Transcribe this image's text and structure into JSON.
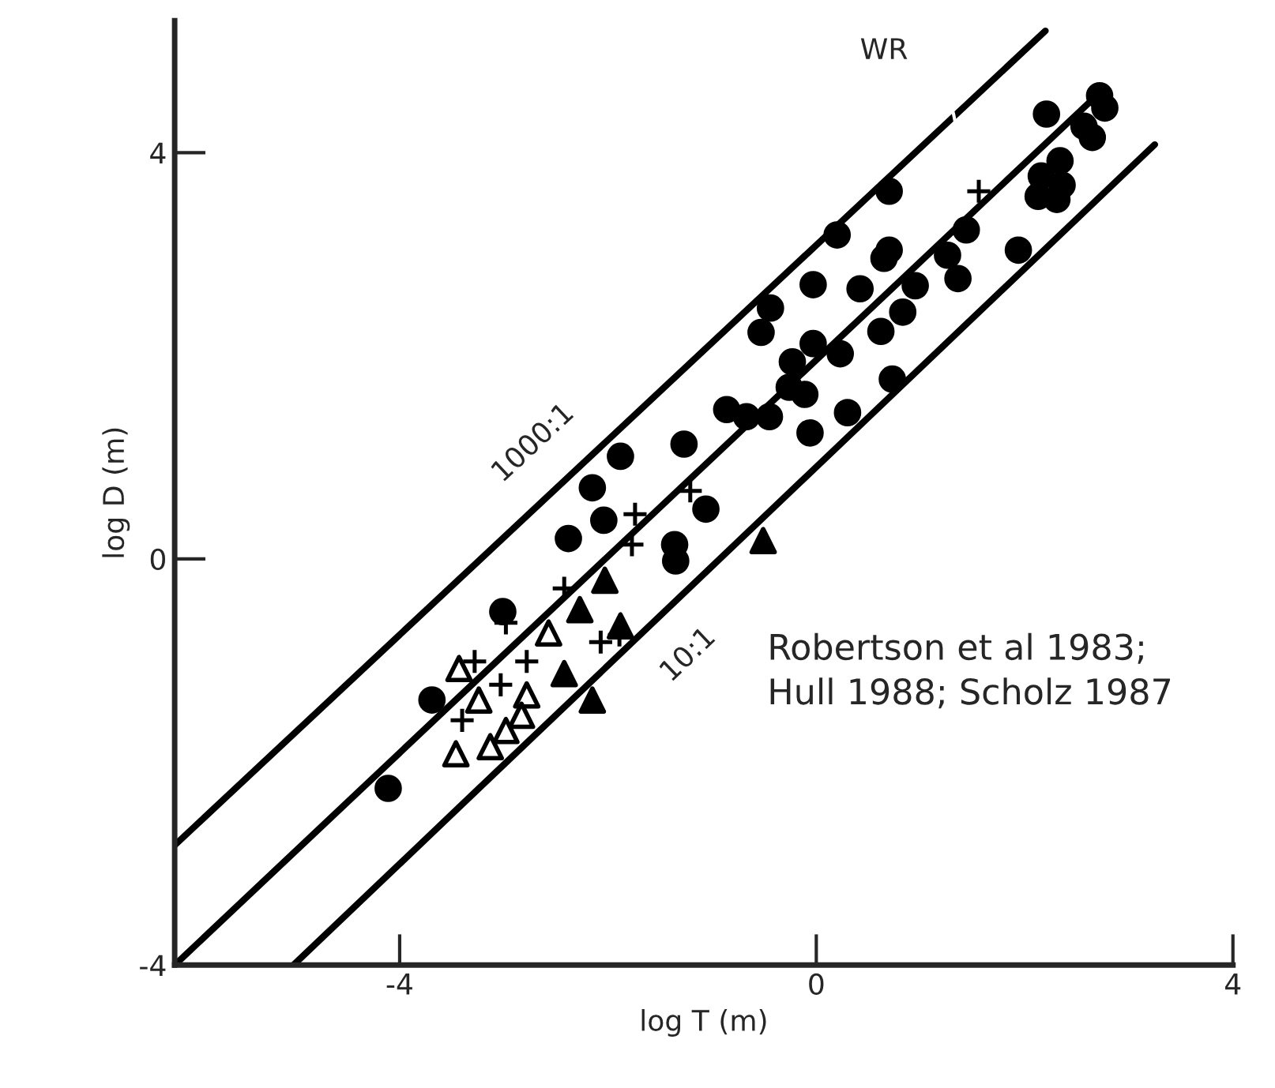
{
  "chart_data": {
    "type": "scatter",
    "xlabel": "log T (m)",
    "ylabel": "log D (m)",
    "xlim": [
      -6.16,
      4
    ],
    "ylim": [
      -4,
      5.3
    ],
    "xticks": [
      -4,
      0,
      4
    ],
    "yticks": [
      -4,
      0,
      4
    ],
    "grid": false,
    "legend": false,
    "annotations": [
      "WR",
      "Robertson et al 1983;\nHull 1988; Scholz 1987"
    ],
    "series": [
      {
        "type": "line",
        "name": "1000:1",
        "color": "#000000",
        "x": [
          -6.16,
          2.2
        ],
        "values": [
          -2.82,
          5.2
        ]
      },
      {
        "type": "line",
        "color": "#000000",
        "x": [
          -6.16,
          2.74
        ],
        "values": [
          -4,
          4.61
        ]
      },
      {
        "type": "line",
        "name": "10:1",
        "color": "#000000",
        "x": [
          -5.02,
          3.25
        ],
        "values": [
          -4,
          4.08
        ]
      },
      {
        "marker": "circle",
        "color": "#000000",
        "x": [
          -1.88,
          -2.15,
          -2.04,
          -2.38,
          -1.27,
          -1.06,
          -1.36,
          -1.35,
          -3.01,
          -3.69,
          -4.11,
          -0.86,
          -0.67,
          -0.03,
          -0.44,
          -0.53,
          0.42,
          0.65,
          0.95,
          0.83,
          0.62,
          1.36,
          1.26,
          1.94,
          -0.03,
          0.23,
          -0.23,
          -0.11,
          -0.26,
          -0.45,
          -0.06,
          0.3,
          0.73,
          2.21,
          2.72,
          2.77,
          2.57,
          2.65,
          2.34,
          2.16,
          2.36,
          2.13,
          2.31,
          1.44,
          0.7,
          0.7,
          0.2
        ],
        "values": [
          1.01,
          0.7,
          0.38,
          0.2,
          1.13,
          0.49,
          0.14,
          -0.02,
          -0.52,
          -1.39,
          -2.26,
          1.47,
          1.4,
          2.7,
          2.47,
          2.23,
          2.66,
          2.96,
          2.69,
          2.43,
          2.24,
          2.76,
          2.99,
          3.04,
          2.12,
          2.02,
          1.94,
          1.62,
          1.69,
          1.4,
          1.24,
          1.44,
          1.77,
          4.38,
          4.56,
          4.44,
          4.26,
          4.15,
          3.92,
          3.77,
          3.68,
          3.57,
          3.54,
          3.24,
          3.62,
          3.04,
          3.19
        ]
      },
      {
        "marker": "triangle",
        "color": "#000000",
        "x": [
          -0.51,
          -2.03,
          -2.27,
          -2.42,
          -2.15,
          -1.88
        ],
        "values": [
          0.18,
          -0.21,
          -0.5,
          -1.13,
          -1.39,
          -0.66
        ]
      },
      {
        "marker": "triangle",
        "color": "#ffffff",
        "x": [
          -3.43,
          -3.24,
          -2.78,
          -2.83,
          -2.98,
          -3.13,
          -3.46,
          -2.57
        ],
        "values": [
          -1.08,
          -1.39,
          -1.34,
          -1.54,
          -1.69,
          -1.85,
          -1.92,
          -0.73
        ]
      },
      {
        "marker": "cross",
        "color": "#000000",
        "x": [
          -3.28,
          -3.03,
          -3.4,
          -2.78,
          -2.98,
          -2.42,
          -2.07,
          -1.89,
          -1.74,
          -1.77,
          -1.21,
          1.56
        ],
        "values": [
          -1.01,
          -1.24,
          -1.59,
          -1.01,
          -0.63,
          -0.29,
          -0.82,
          -0.75,
          0.44,
          0.14,
          0.67,
          3.62
        ]
      }
    ]
  }
}
